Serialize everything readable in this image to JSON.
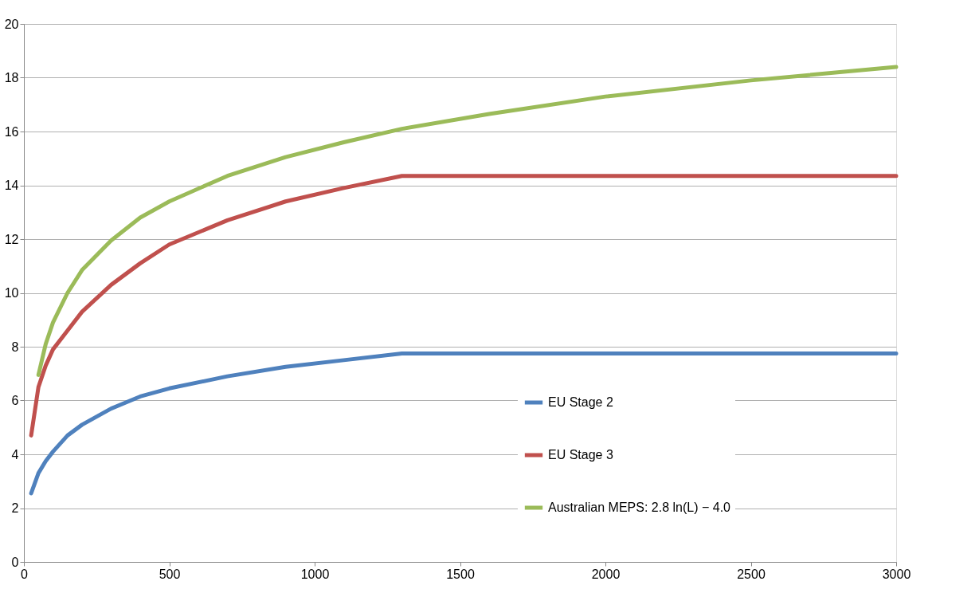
{
  "chart_data": {
    "type": "line",
    "x": [
      25,
      50,
      75,
      100,
      150,
      200,
      300,
      400,
      500,
      700,
      900,
      1100,
      1300,
      1600,
      2000,
      2500,
      3000
    ],
    "series": [
      {
        "name": "EU Stage 2",
        "color": "#4f81bd",
        "values": [
          2.55,
          3.3,
          3.75,
          4.1,
          4.7,
          5.1,
          5.7,
          6.15,
          6.45,
          6.9,
          7.25,
          7.5,
          7.75,
          7.75,
          7.75,
          7.75,
          7.75
        ]
      },
      {
        "name": "EU Stage 3",
        "color": "#c0504d",
        "values": [
          4.7,
          6.5,
          7.3,
          7.9,
          8.6,
          9.3,
          10.3,
          11.1,
          11.8,
          12.7,
          13.4,
          13.9,
          14.35,
          14.35,
          14.35,
          14.35,
          14.35
        ]
      },
      {
        "name": "Australian MEPS: 2.8 ln(L) − 4.0",
        "color": "#9bbb59",
        "values": [
          null,
          6.95,
          8.1,
          8.9,
          10.0,
          10.85,
          11.95,
          12.8,
          13.4,
          14.35,
          15.05,
          15.6,
          16.1,
          16.65,
          17.3,
          17.9,
          18.4
        ]
      }
    ],
    "xlim": [
      0,
      3000
    ],
    "xticks": [
      0,
      500,
      1000,
      1500,
      2000,
      2500,
      3000
    ],
    "ylim": [
      0,
      20
    ],
    "yticks": [
      0,
      2,
      4,
      6,
      8,
      10,
      12,
      14,
      16,
      18,
      20
    ],
    "grid": "y",
    "legend": "bottom right",
    "line_style": "solid",
    "marker": "none"
  }
}
